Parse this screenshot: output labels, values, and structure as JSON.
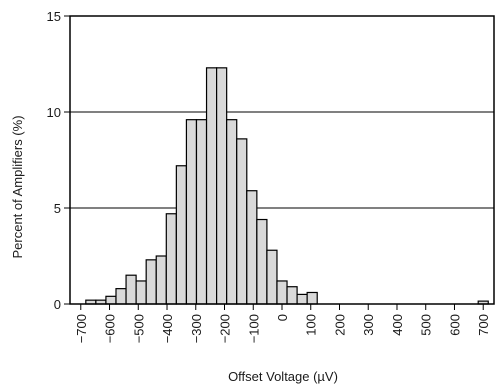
{
  "chart_data": {
    "type": "bar",
    "xlabel": "Offset Voltage (µV)",
    "ylabel": "Percent of Amplifiers (%)",
    "xlim": [
      -737.5,
      737.5
    ],
    "ylim": [
      0,
      15
    ],
    "bin_width": 35,
    "x_ticks": [
      -700,
      -600,
      -500,
      -400,
      -300,
      -200,
      -100,
      0,
      100,
      200,
      300,
      400,
      500,
      600,
      700
    ],
    "x_tick_labels": [
      "−700",
      "−600",
      "−500",
      "−400",
      "−300",
      "−200",
      "−100",
      "0",
      "100",
      "200",
      "300",
      "400",
      "500",
      "600",
      "700"
    ],
    "y_ticks": [
      0,
      5,
      10,
      15
    ],
    "y_tick_labels": [
      "0",
      "5",
      "10",
      "15"
    ],
    "gridlines_y": [
      5,
      10
    ],
    "bar_color": "#d9d9d9",
    "bar_edge_color": "#000000",
    "bars": [
      {
        "x": -700,
        "value": 0
      },
      {
        "x": -665,
        "value": 0.2
      },
      {
        "x": -630,
        "value": 0.2
      },
      {
        "x": -595,
        "value": 0.4
      },
      {
        "x": -560,
        "value": 0.8
      },
      {
        "x": -525,
        "value": 1.5
      },
      {
        "x": -490,
        "value": 1.2
      },
      {
        "x": -455,
        "value": 2.3
      },
      {
        "x": -420,
        "value": 2.5
      },
      {
        "x": -385,
        "value": 4.7
      },
      {
        "x": -350,
        "value": 7.2
      },
      {
        "x": -315,
        "value": 9.6
      },
      {
        "x": -280,
        "value": 9.6
      },
      {
        "x": -245,
        "value": 12.3
      },
      {
        "x": -210,
        "value": 12.3
      },
      {
        "x": -175,
        "value": 9.6
      },
      {
        "x": -140,
        "value": 8.6
      },
      {
        "x": -105,
        "value": 5.9
      },
      {
        "x": -70,
        "value": 4.4
      },
      {
        "x": -35,
        "value": 2.8
      },
      {
        "x": 0,
        "value": 1.2
      },
      {
        "x": 35,
        "value": 0.9
      },
      {
        "x": 70,
        "value": 0.5
      },
      {
        "x": 105,
        "value": 0.6
      },
      {
        "x": 140,
        "value": 0
      },
      {
        "x": 175,
        "value": 0
      },
      {
        "x": 210,
        "value": 0
      },
      {
        "x": 245,
        "value": 0
      },
      {
        "x": 280,
        "value": 0
      },
      {
        "x": 315,
        "value": 0
      },
      {
        "x": 350,
        "value": 0
      },
      {
        "x": 385,
        "value": 0
      },
      {
        "x": 420,
        "value": 0
      },
      {
        "x": 455,
        "value": 0
      },
      {
        "x": 490,
        "value": 0
      },
      {
        "x": 525,
        "value": 0
      },
      {
        "x": 560,
        "value": 0
      },
      {
        "x": 595,
        "value": 0
      },
      {
        "x": 630,
        "value": 0
      },
      {
        "x": 665,
        "value": 0
      },
      {
        "x": 700,
        "value": 0.15
      }
    ]
  }
}
